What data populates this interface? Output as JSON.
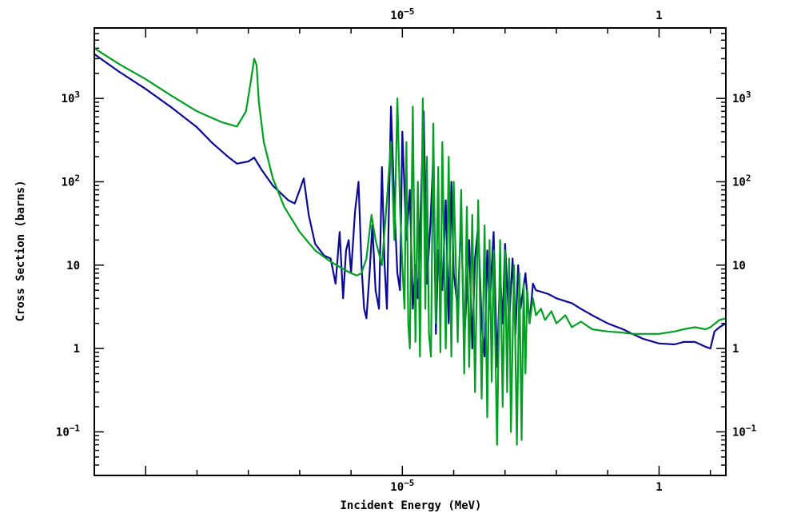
{
  "chart_data": {
    "type": "line",
    "xlabel": "Incident Energy (MeV)",
    "ylabel": "Cross Section (barns)",
    "x_scale": "log",
    "y_scale": "log",
    "xlim": [
      1e-11,
      20
    ],
    "ylim": [
      0.03,
      7000
    ],
    "grid": false,
    "x_ticks": [
      {
        "value": 1e-05,
        "label": "10",
        "exp": "−5"
      },
      {
        "value": 1,
        "label": "1",
        "exp": ""
      }
    ],
    "y_ticks": [
      {
        "value": 0.1,
        "label": "10",
        "exp": "−1"
      },
      {
        "value": 1,
        "label": "1",
        "exp": ""
      },
      {
        "value": 10,
        "label": "10",
        "exp": ""
      },
      {
        "value": 100,
        "label": "10",
        "exp": "2"
      },
      {
        "value": 1000,
        "label": "10",
        "exp": "3"
      }
    ],
    "series": [
      {
        "color": "#0a0a96",
        "points": [
          [
            1e-11,
            3400
          ],
          [
            3e-11,
            2100
          ],
          [
            1e-10,
            1300
          ],
          [
            3e-10,
            800
          ],
          [
            1e-09,
            450
          ],
          [
            2e-09,
            290
          ],
          [
            4e-09,
            200
          ],
          [
            6e-09,
            165
          ],
          [
            1e-08,
            175
          ],
          [
            1.3e-08,
            195
          ],
          [
            1.8e-08,
            140
          ],
          [
            3e-08,
            90
          ],
          [
            6e-08,
            60
          ],
          [
            8e-08,
            55
          ],
          [
            1e-07,
            80
          ],
          [
            1.2e-07,
            110
          ],
          [
            1.5e-07,
            40
          ],
          [
            2e-07,
            18
          ],
          [
            3e-07,
            13
          ],
          [
            4e-07,
            12
          ],
          [
            5e-07,
            6
          ],
          [
            6e-07,
            25
          ],
          [
            7e-07,
            4
          ],
          [
            8e-07,
            15
          ],
          [
            9e-07,
            20
          ],
          [
            1e-06,
            8
          ],
          [
            1.2e-06,
            45
          ],
          [
            1.4e-06,
            100
          ],
          [
            1.6e-06,
            10
          ],
          [
            1.8e-06,
            3
          ],
          [
            2e-06,
            2.3
          ],
          [
            2.3e-06,
            8
          ],
          [
            2.6e-06,
            30
          ],
          [
            3e-06,
            5
          ],
          [
            3.5e-06,
            3
          ],
          [
            4e-06,
            150
          ],
          [
            4.5e-06,
            10
          ],
          [
            5e-06,
            3
          ],
          [
            6e-06,
            800
          ],
          [
            7e-06,
            50
          ],
          [
            8e-06,
            8
          ],
          [
            9e-06,
            5
          ],
          [
            1e-05,
            400
          ],
          [
            1.2e-05,
            20
          ],
          [
            1.4e-05,
            80
          ],
          [
            1.6e-05,
            3
          ],
          [
            1.8e-05,
            10
          ],
          [
            2e-05,
            4
          ],
          [
            2.3e-05,
            60
          ],
          [
            2.6e-05,
            700
          ],
          [
            3e-05,
            6
          ],
          [
            3.5e-05,
            30
          ],
          [
            4e-05,
            200
          ],
          [
            4.5e-05,
            1.5
          ],
          [
            5e-05,
            15
          ],
          [
            6e-05,
            5
          ],
          [
            7e-05,
            60
          ],
          [
            8e-05,
            2
          ],
          [
            9e-05,
            100
          ],
          [
            0.0001,
            8
          ],
          [
            0.00012,
            3
          ],
          [
            0.00014,
            40
          ],
          [
            0.00016,
            1.2
          ],
          [
            0.00018,
            5
          ],
          [
            0.0002,
            20
          ],
          [
            0.00023,
            1
          ],
          [
            0.00026,
            12
          ],
          [
            0.0003,
            30
          ],
          [
            0.00035,
            2
          ],
          [
            0.0004,
            0.8
          ],
          [
            0.00045,
            15
          ],
          [
            0.0005,
            3
          ],
          [
            0.0006,
            25
          ],
          [
            0.0007,
            0.6
          ],
          [
            0.0008,
            8
          ],
          [
            0.0009,
            2
          ],
          [
            0.001,
            18
          ],
          [
            0.0012,
            2
          ],
          [
            0.0014,
            12
          ],
          [
            0.0016,
            1.5
          ],
          [
            0.0018,
            10
          ],
          [
            0.002,
            3
          ],
          [
            0.0025,
            8
          ],
          [
            0.003,
            2
          ],
          [
            0.0035,
            6
          ],
          [
            0.004,
            5
          ],
          [
            0.005,
            4.8
          ],
          [
            0.007,
            4.5
          ],
          [
            0.01,
            4
          ],
          [
            0.02,
            3.5
          ],
          [
            0.03,
            3
          ],
          [
            0.05,
            2.5
          ],
          [
            0.1,
            2
          ],
          [
            0.2,
            1.7
          ],
          [
            0.3,
            1.5
          ],
          [
            0.5,
            1.3
          ],
          [
            1,
            1.15
          ],
          [
            2,
            1.12
          ],
          [
            3,
            1.2
          ],
          [
            5,
            1.2
          ],
          [
            8,
            1.05
          ],
          [
            10,
            1
          ],
          [
            12,
            1.6
          ],
          [
            15,
            1.8
          ],
          [
            20,
            2
          ]
        ]
      },
      {
        "color": "#00a020",
        "points": [
          [
            1e-11,
            4000
          ],
          [
            3e-11,
            2600
          ],
          [
            1e-10,
            1700
          ],
          [
            3e-10,
            1100
          ],
          [
            1e-09,
            700
          ],
          [
            3e-09,
            520
          ],
          [
            6e-09,
            460
          ],
          [
            9e-09,
            700
          ],
          [
            1.1e-08,
            1500
          ],
          [
            1.3e-08,
            3000
          ],
          [
            1.45e-08,
            2500
          ],
          [
            1.6e-08,
            900
          ],
          [
            2e-08,
            300
          ],
          [
            3e-08,
            110
          ],
          [
            5e-08,
            50
          ],
          [
            1e-07,
            25
          ],
          [
            2e-07,
            15
          ],
          [
            4e-07,
            11
          ],
          [
            7e-07,
            9
          ],
          [
            1e-06,
            8
          ],
          [
            1.3e-06,
            7.5
          ],
          [
            1.6e-06,
            8
          ],
          [
            2e-06,
            12
          ],
          [
            2.5e-06,
            40
          ],
          [
            3e-06,
            20
          ],
          [
            4e-06,
            10
          ],
          [
            5e-06,
            60
          ],
          [
            6e-06,
            300
          ],
          [
            7e-06,
            20
          ],
          [
            8e-06,
            1000
          ],
          [
            9e-06,
            50
          ],
          [
            1e-05,
            10
          ],
          [
            1.1e-05,
            3
          ],
          [
            1.2e-05,
            300
          ],
          [
            1.3e-05,
            2
          ],
          [
            1.4e-05,
            1
          ],
          [
            1.6e-05,
            800
          ],
          [
            1.8e-05,
            1.2
          ],
          [
            2e-05,
            100
          ],
          [
            2.2e-05,
            0.8
          ],
          [
            2.5e-05,
            1000
          ],
          [
            2.8e-05,
            3
          ],
          [
            3e-05,
            200
          ],
          [
            3.3e-05,
            1.5
          ],
          [
            3.6e-05,
            0.8
          ],
          [
            4e-05,
            500
          ],
          [
            4.5e-05,
            2
          ],
          [
            5e-05,
            150
          ],
          [
            5.5e-05,
            0.9
          ],
          [
            6e-05,
            300
          ],
          [
            7e-05,
            1
          ],
          [
            8e-05,
            200
          ],
          [
            9e-05,
            0.8
          ],
          [
            0.0001,
            100
          ],
          [
            0.00012,
            1.2
          ],
          [
            0.00014,
            80
          ],
          [
            0.00016,
            0.5
          ],
          [
            0.00018,
            50
          ],
          [
            0.0002,
            0.6
          ],
          [
            0.00023,
            40
          ],
          [
            0.00026,
            0.3
          ],
          [
            0.0003,
            60
          ],
          [
            0.00035,
            0.25
          ],
          [
            0.0004,
            30
          ],
          [
            0.00045,
            0.15
          ],
          [
            0.0005,
            20
          ],
          [
            0.00055,
            0.4
          ],
          [
            0.0006,
            15
          ],
          [
            0.0007,
            0.07
          ],
          [
            0.0008,
            20
          ],
          [
            0.0009,
            0.2
          ],
          [
            0.001,
            15
          ],
          [
            0.0011,
            0.3
          ],
          [
            0.0012,
            12
          ],
          [
            0.0013,
            0.1
          ],
          [
            0.0015,
            10
          ],
          [
            0.0017,
            0.07
          ],
          [
            0.0019,
            8
          ],
          [
            0.0021,
            0.08
          ],
          [
            0.0023,
            6
          ],
          [
            0.0025,
            0.5
          ],
          [
            0.0027,
            5
          ],
          [
            0.003,
            2
          ],
          [
            0.0035,
            4
          ],
          [
            0.004,
            2.5
          ],
          [
            0.005,
            3
          ],
          [
            0.006,
            2.2
          ],
          [
            0.008,
            2.8
          ],
          [
            0.01,
            2
          ],
          [
            0.015,
            2.5
          ],
          [
            0.02,
            1.8
          ],
          [
            0.03,
            2.1
          ],
          [
            0.05,
            1.7
          ],
          [
            0.1,
            1.6
          ],
          [
            0.2,
            1.55
          ],
          [
            0.3,
            1.5
          ],
          [
            0.5,
            1.5
          ],
          [
            1,
            1.5
          ],
          [
            2,
            1.6
          ],
          [
            3,
            1.7
          ],
          [
            5,
            1.8
          ],
          [
            8,
            1.7
          ],
          [
            10,
            1.8
          ],
          [
            15,
            2.2
          ],
          [
            20,
            2.3
          ]
        ]
      }
    ]
  }
}
